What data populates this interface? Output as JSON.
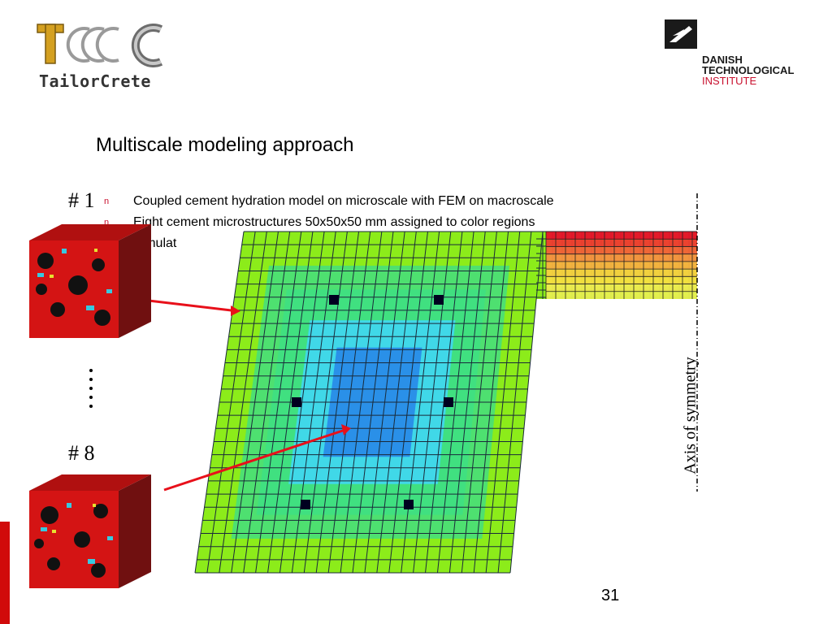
{
  "logos": {
    "tailorcrete_text": "TailorCrete",
    "dti_line1": "DANISH",
    "dti_line2": "TECHNOLOGICAL",
    "dti_line3": "INSTITUTE"
  },
  "slide": {
    "title": "Multiscale modeling approach",
    "bullet_marker": "n",
    "bullets": [
      "Coupled cement hydration model on microscale with FEM on macroscale",
      "Eight cement microstructures 50x50x50 mm assigned to color regions",
      "Simulat"
    ],
    "label_first": "# 1",
    "label_last": "# 8",
    "axis_label": "Axis of symmetry",
    "page_number": "31"
  },
  "colors": {
    "accent_red": "#c8102e",
    "mesh_outer": "#8cec1a",
    "mesh_mid": "#40e080",
    "mesh_inner": "#40d8e8",
    "mesh_core": "#2a90e8",
    "hot_red": "#e8102a",
    "hot_orange": "#f89040",
    "hot_yellow": "#f8e040"
  }
}
